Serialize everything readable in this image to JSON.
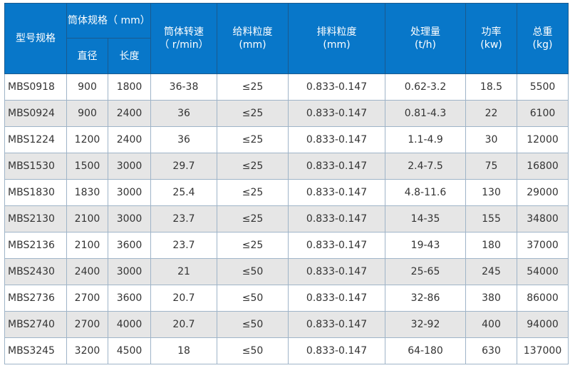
{
  "header": {
    "model": "型号规格",
    "cylinder": "筒体规格（ mm）",
    "diameter": "直径",
    "length": "长度",
    "speed": [
      "筒体转速",
      "（ r/min）"
    ],
    "feed": [
      "给料粒度",
      "(mm)"
    ],
    "discharge": [
      "排料粒度",
      "(mm)"
    ],
    "capacity": [
      "处理量",
      "(t/h)"
    ],
    "power": [
      "功率",
      "(kw)"
    ],
    "weight": [
      "总重",
      "(kg)"
    ]
  },
  "rows": [
    [
      "MBS0918",
      "900",
      "1800",
      "36-38",
      "≤25",
      "0.833-0.147",
      "0.62-3.2",
      "18.5",
      "5500"
    ],
    [
      "MBS0924",
      "900",
      "2400",
      "36",
      "≤25",
      "0.833-0.147",
      "0.81-4.3",
      "22",
      "6100"
    ],
    [
      "MBS1224",
      "1200",
      "2400",
      "36",
      "≤25",
      "0.833-0.147",
      "1.1-4.9",
      "30",
      "12000"
    ],
    [
      "MBS1530",
      "1500",
      "3000",
      "29.7",
      "≤25",
      "0.833-0.147",
      "2.4-7.5",
      "75",
      "16800"
    ],
    [
      "MBS1830",
      "1830",
      "3000",
      "25.4",
      "≤25",
      "0.833-0.147",
      "4.8-11.6",
      "130",
      "29000"
    ],
    [
      "MBS2130",
      "2100",
      "3000",
      "23.7",
      "≤25",
      "0.833-0.147",
      "14-35",
      "155",
      "34800"
    ],
    [
      "MBS2136",
      "2100",
      "3600",
      "23.7",
      "≤25",
      "0.833-0.147",
      "19-43",
      "180",
      "37000"
    ],
    [
      "MBS2430",
      "2400",
      "3000",
      "21",
      "≤50",
      "0.833-0.147",
      "25-65",
      "245",
      "54000"
    ],
    [
      "MBS2736",
      "2700",
      "3600",
      "20.7",
      "≤50",
      "0.833-0.147",
      "32-86",
      "380",
      "86000"
    ],
    [
      "MBS2740",
      "2700",
      "4000",
      "20.7",
      "≤50",
      "0.833-0.147",
      "32-92",
      "400",
      "94000"
    ],
    [
      "MBS3245",
      "3200",
      "4500",
      "18",
      "≤50",
      "0.833-0.147",
      "64-180",
      "630",
      "137000"
    ]
  ],
  "colors": {
    "header_bg": "#0877c9",
    "alt_row": "#e6e6e6"
  }
}
